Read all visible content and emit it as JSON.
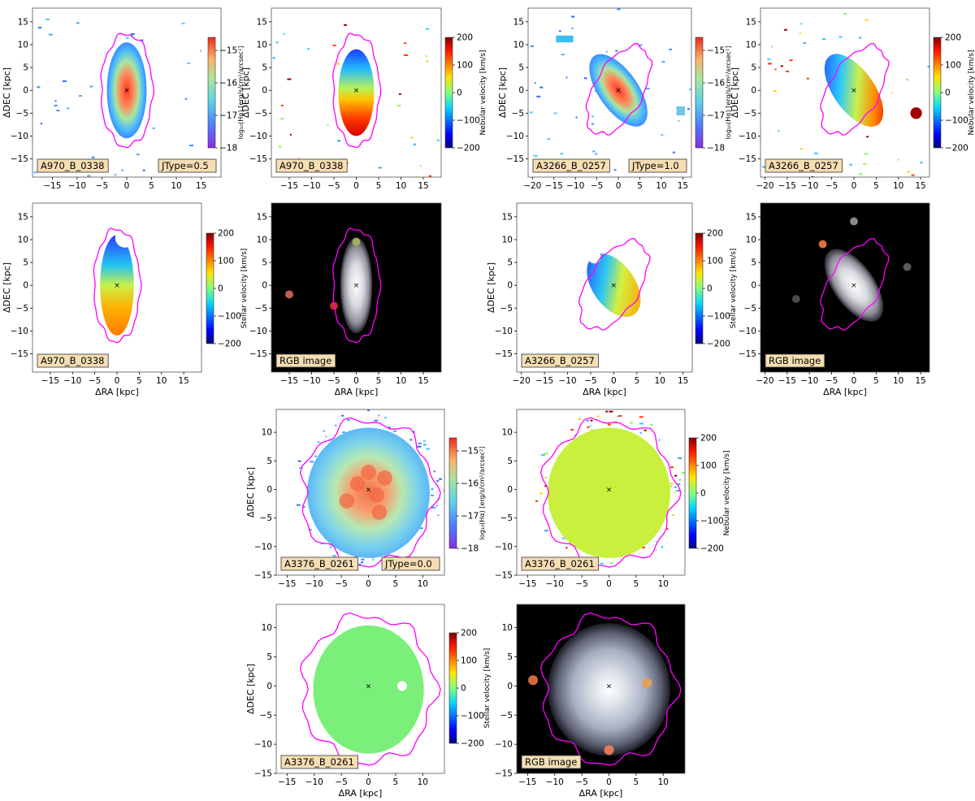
{
  "colors": {
    "magenta": "#ff00ff",
    "label_bg": "#f5deb3",
    "axis": "#000000"
  },
  "chart_data": [
    {
      "id": "p1",
      "type": "heatmap",
      "map": "flux",
      "xlabel": "",
      "ylabel": "ΔDEC [kpc]",
      "xlim": [
        -19,
        19
      ],
      "ylim": [
        -19,
        18
      ],
      "xticks": [
        -15,
        -10,
        -5,
        0,
        5,
        10,
        15
      ],
      "yticks": [
        -15,
        -10,
        -5,
        0,
        5,
        10,
        15
      ],
      "label": "A970_B_0338",
      "jtype": "JType=0.5",
      "cbar_label": "log₁₀(Hα) [erg/s/cm²/arcsec²]",
      "cbar_ticks": [
        -15,
        -16,
        -17,
        -18
      ],
      "cbar_range": [
        -18,
        -14.6
      ],
      "galaxy": "edgeon"
    },
    {
      "id": "p2",
      "type": "heatmap",
      "map": "vneb",
      "xlabel": "",
      "ylabel": "ΔDEC [kpc]",
      "xlim": [
        -19,
        19
      ],
      "ylim": [
        -19,
        18
      ],
      "xticks": [
        -15,
        -10,
        -5,
        0,
        5,
        10,
        15
      ],
      "yticks": [
        -15,
        -10,
        -5,
        0,
        5,
        10,
        15
      ],
      "label": "A970_B_0338",
      "cbar_label": "Nebular velocity [km/s]",
      "cbar_ticks": [
        200,
        100,
        0,
        -100,
        -200
      ],
      "cbar_range": [
        -200,
        200
      ],
      "galaxy": "edgeon"
    },
    {
      "id": "p3",
      "type": "heatmap",
      "map": "flux",
      "xlabel": "",
      "ylabel": "ΔDEC [kpc]",
      "xlim": [
        -21,
        17
      ],
      "ylim": [
        -19,
        18
      ],
      "xticks": [
        -20,
        -15,
        -10,
        -5,
        0,
        5,
        10,
        15
      ],
      "yticks": [
        -15,
        -10,
        -5,
        0,
        5,
        10,
        15
      ],
      "label": "A3266_B_0257",
      "jtype": "JType=1.0",
      "cbar_label": "log₁₀(Hα) [erg/s/cm²/arcsec²]",
      "cbar_ticks": [
        -15,
        -16,
        -17,
        -18
      ],
      "cbar_range": [
        -18,
        -14.6
      ],
      "galaxy": "tilted"
    },
    {
      "id": "p4",
      "type": "heatmap",
      "map": "vneb",
      "xlabel": "",
      "ylabel": "ΔDEC [kpc]",
      "xlim": [
        -21,
        17
      ],
      "ylim": [
        -19,
        18
      ],
      "xticks": [
        -20,
        -15,
        -10,
        -5,
        0,
        5,
        10,
        15
      ],
      "yticks": [
        -15,
        -10,
        -5,
        0,
        5,
        10,
        15
      ],
      "label": "A3266_B_0257",
      "cbar_label": "Nebular velocity [km/s]",
      "cbar_ticks": [
        200,
        100,
        0,
        -100,
        -200
      ],
      "cbar_range": [
        -200,
        200
      ],
      "galaxy": "tilted"
    },
    {
      "id": "p5",
      "type": "heatmap",
      "map": "vstar",
      "xlabel": "ΔRA [kpc]",
      "ylabel": "ΔDEC [kpc]",
      "xlim": [
        -19,
        19
      ],
      "ylim": [
        -19,
        18
      ],
      "xticks": [
        -15,
        -10,
        -5,
        0,
        5,
        10,
        15
      ],
      "yticks": [
        -15,
        -10,
        -5,
        0,
        5,
        10,
        15
      ],
      "label": "A970_B_0338",
      "cbar_label": "Stellar velocity [km/s]",
      "cbar_ticks": [
        200,
        100,
        0,
        -100,
        -200
      ],
      "cbar_range": [
        -200,
        200
      ],
      "galaxy": "edgeon"
    },
    {
      "id": "p6",
      "type": "image",
      "map": "rgb",
      "xlabel": "ΔRA [kpc]",
      "ylabel": "",
      "xlim": [
        -19,
        19
      ],
      "ylim": [
        -19,
        18
      ],
      "xticks": [
        -15,
        -10,
        -5,
        0,
        5,
        10,
        15
      ],
      "yticks": [
        -15,
        -10,
        -5,
        0,
        5,
        10,
        15
      ],
      "label": "RGB image",
      "galaxy": "edgeon"
    },
    {
      "id": "p7",
      "type": "heatmap",
      "map": "vstar",
      "xlabel": "ΔRA [kpc]",
      "ylabel": "ΔDEC [kpc]",
      "xlim": [
        -21,
        17
      ],
      "ylim": [
        -19,
        18
      ],
      "xticks": [
        -20,
        -15,
        -10,
        -5,
        0,
        5,
        10,
        15
      ],
      "yticks": [
        -15,
        -10,
        -5,
        0,
        5,
        10,
        15
      ],
      "label": "A3266_B_0257",
      "cbar_label": "Stellar velocity [km/s]",
      "cbar_ticks": [
        200,
        100,
        0,
        -100,
        -200
      ],
      "cbar_range": [
        -200,
        200
      ],
      "galaxy": "tilted"
    },
    {
      "id": "p8",
      "type": "image",
      "map": "rgb",
      "xlabel": "ΔRA [kpc]",
      "ylabel": "",
      "xlim": [
        -21,
        17
      ],
      "ylim": [
        -19,
        18
      ],
      "xticks": [
        -20,
        -15,
        -10,
        -5,
        0,
        5,
        10,
        15
      ],
      "yticks": [
        -15,
        -10,
        -5,
        0,
        5,
        10,
        15
      ],
      "label": "RGB image",
      "galaxy": "tilted"
    },
    {
      "id": "p9",
      "type": "heatmap",
      "map": "flux",
      "xlabel": "",
      "ylabel": "ΔDEC [kpc]",
      "xlim": [
        -17,
        14
      ],
      "ylim": [
        -15,
        14
      ],
      "xticks": [
        -15,
        -10,
        -5,
        0,
        5,
        10
      ],
      "yticks": [
        -15,
        -10,
        -5,
        0,
        5,
        10
      ],
      "label": "A3376_B_0261",
      "jtype": "JType=0.0",
      "cbar_label": "log₁₀(Hα) [erg/s/cm²/arcsec²]",
      "cbar_ticks": [
        -15,
        -16,
        -17,
        -18
      ],
      "cbar_range": [
        -18,
        -14.6
      ],
      "galaxy": "faceon"
    },
    {
      "id": "p10",
      "type": "heatmap",
      "map": "vneb",
      "xlabel": "",
      "ylabel": "",
      "xlim": [
        -17,
        14
      ],
      "ylim": [
        -15,
        14
      ],
      "xticks": [
        -15,
        -10,
        -5,
        0,
        5,
        10
      ],
      "yticks": [
        -15,
        -10,
        -5,
        0,
        5,
        10
      ],
      "label": "A3376_B_0261",
      "cbar_label": "Nebular velocity [km/s]",
      "cbar_ticks": [
        200,
        100,
        0,
        -100,
        -200
      ],
      "cbar_range": [
        -200,
        200
      ],
      "galaxy": "faceon"
    },
    {
      "id": "p11",
      "type": "heatmap",
      "map": "vstar",
      "xlabel": "ΔRA [kpc]",
      "ylabel": "ΔDEC [kpc]",
      "xlim": [
        -17,
        14
      ],
      "ylim": [
        -15,
        14
      ],
      "xticks": [
        -15,
        -10,
        -5,
        0,
        5,
        10
      ],
      "yticks": [
        -15,
        -10,
        -5,
        0,
        5,
        10
      ],
      "label": "A3376_B_0261",
      "cbar_label": "Stellar velocity [km/s]",
      "cbar_ticks": [
        200,
        100,
        0,
        -100,
        -200
      ],
      "cbar_range": [
        -200,
        200
      ],
      "galaxy": "faceon"
    },
    {
      "id": "p12",
      "type": "image",
      "map": "rgb",
      "xlabel": "ΔRA [kpc]",
      "ylabel": "",
      "xlim": [
        -17,
        14
      ],
      "ylim": [
        -15,
        14
      ],
      "xticks": [
        -15,
        -10,
        -5,
        0,
        5,
        10
      ],
      "yticks": [
        -15,
        -10,
        -5,
        0,
        5,
        10
      ],
      "label": "RGB image",
      "galaxy": "faceon"
    }
  ]
}
